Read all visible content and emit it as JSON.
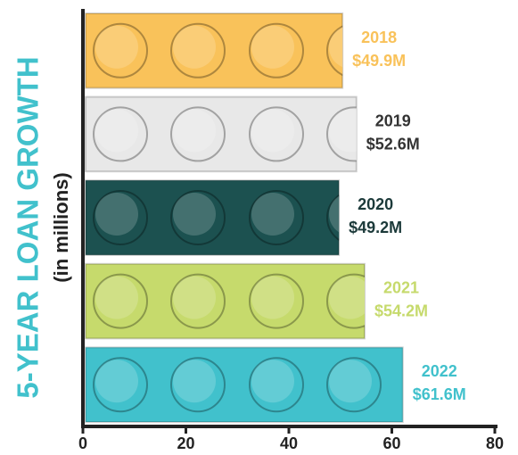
{
  "chart_data": {
    "type": "bar",
    "orientation": "horizontal",
    "title": "5-YEAR LOAN GROWTH",
    "subtitle": "(in millions)",
    "categories": [
      "2018",
      "2019",
      "2020",
      "2021",
      "2022"
    ],
    "values": [
      49.9,
      52.6,
      49.2,
      54.2,
      61.6
    ],
    "value_labels": [
      "$49.9M",
      "$52.6M",
      "$49.2M",
      "$54.2M",
      "$61.6M"
    ],
    "colors": [
      "#f9c25a",
      "#e8e8e8",
      "#1c5150",
      "#c6da6c",
      "#41c1cc"
    ],
    "label_colors": [
      "#f9c25a",
      "#333333",
      "#1c3a3a",
      "#c6da6c",
      "#41c1cc"
    ],
    "title_color": "#41c1cc",
    "xlim": [
      0,
      80
    ],
    "xticks": [
      0,
      20,
      40,
      60,
      80
    ]
  }
}
